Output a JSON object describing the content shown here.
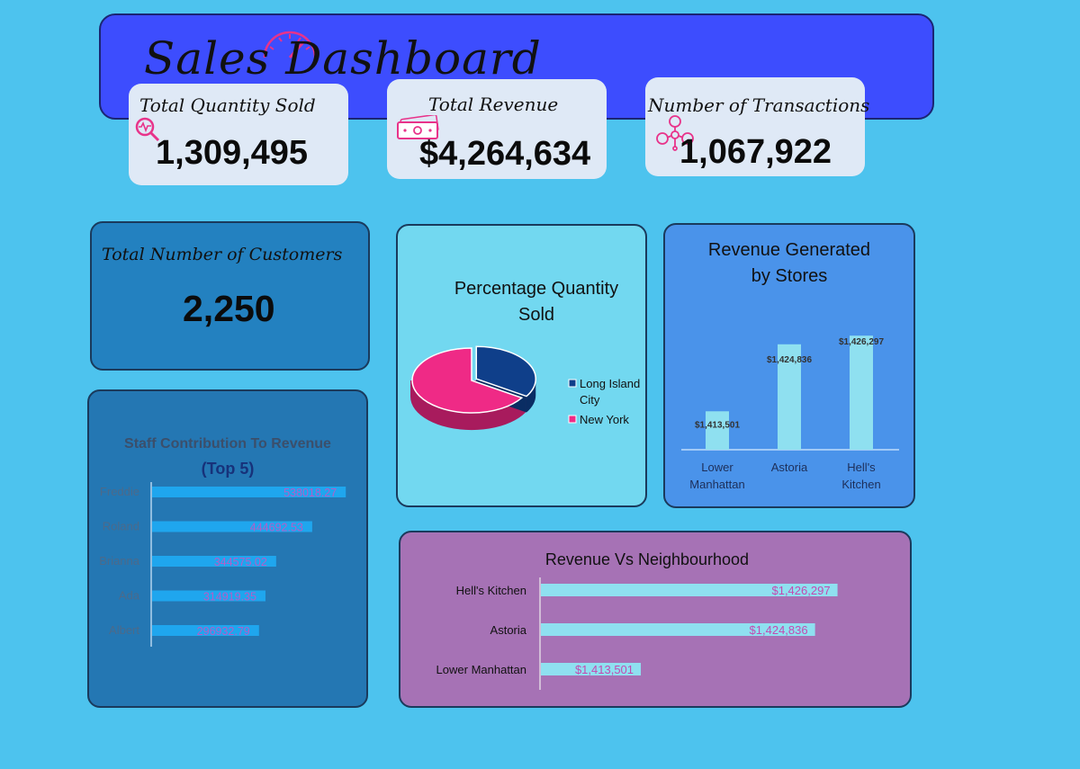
{
  "header": {
    "title": "Sales Dashboard",
    "bg_color": "#3d4dfe",
    "accent_color": "#e8338a"
  },
  "kpis": {
    "quantity": {
      "label": "Total Quantity Sold",
      "value": "1,309,495",
      "icon": "magnifier-pulse-icon"
    },
    "revenue": {
      "label": "Total Revenue",
      "value": "$4,264,634",
      "icon": "money-bill-icon"
    },
    "transactions": {
      "label": "Number of Transactions",
      "value": "1,067,922",
      "icon": "people-network-icon"
    },
    "customers": {
      "label": "Total Number of Customers",
      "value": "2,250"
    }
  },
  "chart_data": [
    {
      "id": "pie",
      "type": "pie",
      "title_lines": [
        "Percentage Quantity",
        "Sold"
      ],
      "slices": [
        {
          "label_lines": [
            "Long Island",
            "City"
          ],
          "value": 34,
          "color": "#0f3f8a"
        },
        {
          "label_lines": [
            "New York"
          ],
          "value": 66,
          "color": "#ef2a86"
        }
      ],
      "legend": "right"
    },
    {
      "id": "stores",
      "type": "bar",
      "title_lines": [
        "Revenue Generated",
        "by Stores"
      ],
      "categories": [
        [
          "Lower",
          "Manhattan"
        ],
        [
          "Astoria"
        ],
        [
          "Hell's",
          "Kitchen"
        ]
      ],
      "values": [
        1413501,
        1424836,
        1426297
      ],
      "data_labels": [
        "$1,413,501",
        "$1,424,836",
        "$1,426,297"
      ],
      "ylim": [
        1407000,
        1428000
      ],
      "bar_color": "#8fe0f0"
    },
    {
      "id": "staff",
      "type": "bar",
      "orientation": "horizontal",
      "title_lines": [
        "Staff Contribution To Revenue",
        "(Top 5)"
      ],
      "categories": [
        "Freddie",
        "Roland",
        "Brianna",
        "Ada",
        "Albert"
      ],
      "values": [
        538018.27,
        444692.53,
        344575.02,
        314919.35,
        296932.79
      ],
      "data_labels": [
        "538018.27",
        "444692.53",
        "344575.02",
        "314919.35",
        "296932.79"
      ],
      "xlim": [
        0,
        540000
      ],
      "bar_color": "#1fa6ee"
    },
    {
      "id": "nbhd",
      "type": "bar",
      "orientation": "horizontal",
      "title": "Revenue Vs Neighbourhood",
      "categories": [
        "Hell's Kitchen",
        "Astoria",
        "Lower Manhattan"
      ],
      "values": [
        1426297,
        1424836,
        1413501
      ],
      "data_labels": [
        "$1,426,297",
        "$1,424,836",
        "$1,413,501"
      ],
      "xlim": [
        1407000,
        1427200
      ],
      "bar_color": "#8fe0f0"
    }
  ]
}
